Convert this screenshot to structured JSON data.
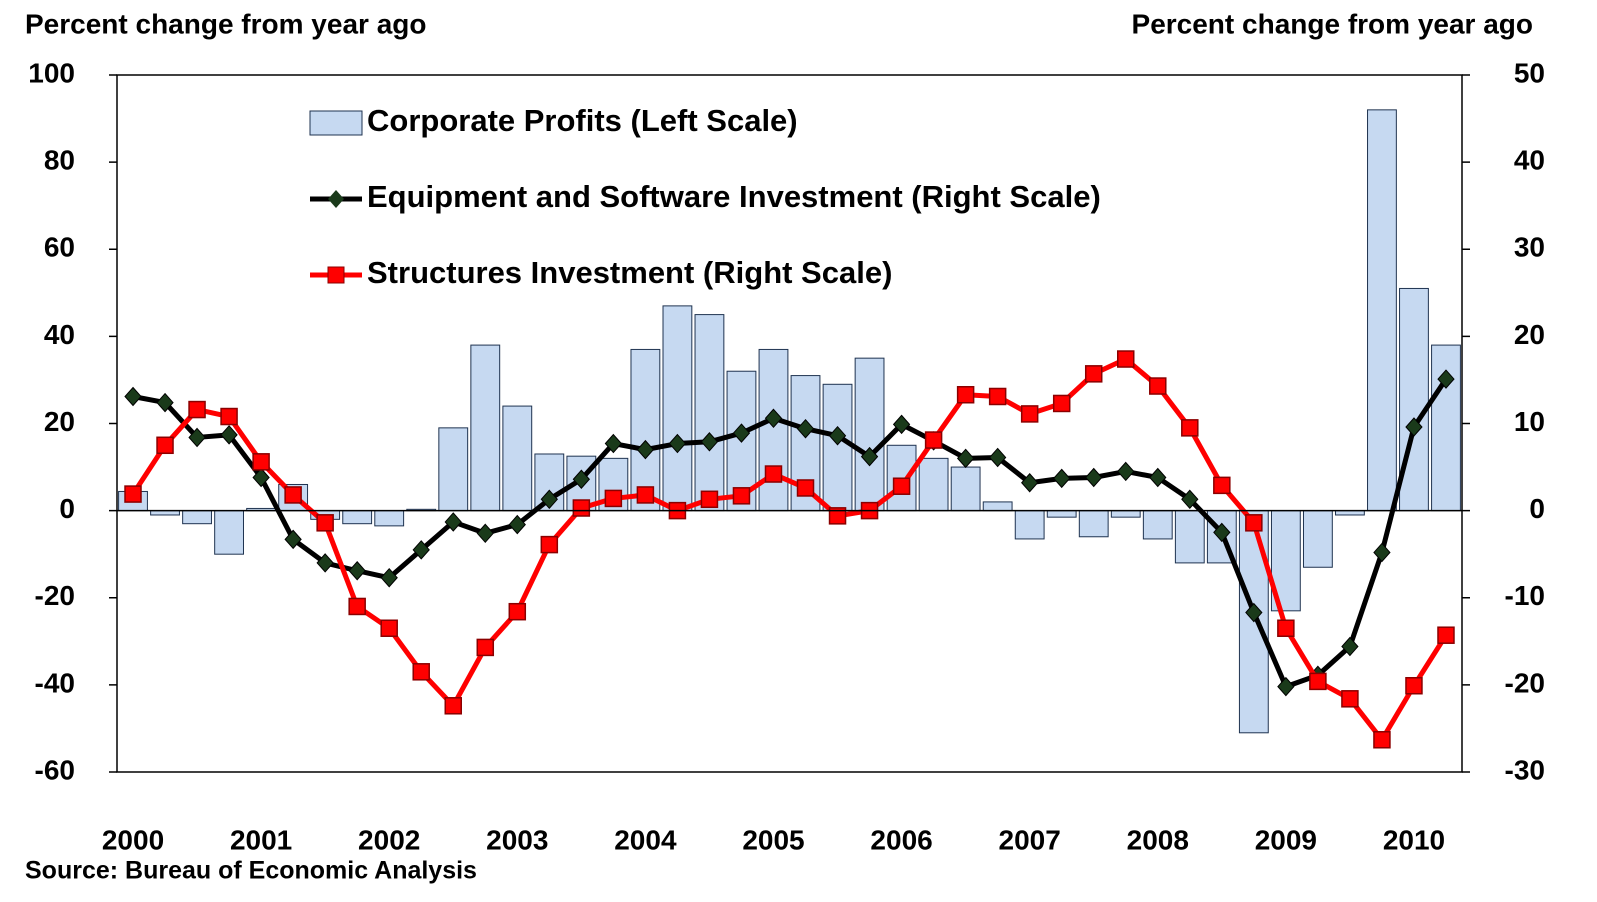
{
  "chart_data": {
    "type": "bar_line",
    "y_label": "Percent change from year ago",
    "y2_label": "Percent change from year ago",
    "source": "Source: Bureau of Economic Analysis",
    "categories": [
      "2000",
      null,
      null,
      null,
      "2001",
      null,
      null,
      null,
      "2002",
      null,
      null,
      null,
      "2003",
      null,
      null,
      null,
      "2004",
      null,
      null,
      null,
      "2005",
      null,
      null,
      null,
      "2006",
      null,
      null,
      null,
      "2007",
      null,
      null,
      null,
      "2008",
      null,
      null,
      null,
      "2009",
      null,
      null,
      null,
      "2010",
      null
    ],
    "ylim": [
      -60,
      100
    ],
    "yticks": [
      -60,
      -40,
      -20,
      0,
      20,
      40,
      60,
      80,
      100
    ],
    "y2lim": [
      -30,
      50
    ],
    "y2ticks": [
      -30,
      -20,
      -10,
      0,
      10,
      20,
      30,
      40,
      50
    ],
    "legend": "upper left",
    "series": [
      {
        "name": "Corporate Profits (Left Scale)",
        "type": "bar",
        "axis": "y",
        "color": "#c6d9f1",
        "values": [
          4.4,
          -1,
          -3,
          -10,
          0.5,
          6,
          -2,
          -3,
          -3.5,
          0.3,
          19,
          38,
          24,
          13,
          12.5,
          12,
          37,
          47,
          45,
          32,
          37,
          31,
          29,
          35,
          15,
          12,
          10,
          2,
          -6.5,
          -1.5,
          -6,
          -1.5,
          -6.5,
          -12,
          -12,
          -51,
          -23,
          -13,
          -1,
          92,
          51,
          38
        ]
      },
      {
        "name": "Equipment and Software Investment (Right Scale)",
        "type": "line",
        "axis": "y2",
        "color": "#000000",
        "marker": "diamond",
        "values": [
          13.1,
          12.4,
          8.4,
          8.7,
          3.8,
          -3.3,
          -6,
          -6.9,
          -7.7,
          -4.5,
          -1.3,
          -2.6,
          -1.6,
          1.3,
          3.6,
          7.7,
          7,
          7.7,
          7.9,
          8.9,
          10.6,
          9.4,
          8.6,
          6.2,
          9.9,
          8,
          6,
          6.1,
          3.2,
          3.7,
          3.8,
          4.5,
          3.8,
          1.3,
          -2.5,
          -11.7,
          -20.2,
          -18.9,
          -15.6,
          -4.8,
          9.6,
          15.1
        ]
      },
      {
        "name": "Structures Investment (Right Scale)",
        "type": "line",
        "axis": "y2",
        "color": "#ff0000",
        "marker": "square",
        "values": [
          1.9,
          7.5,
          11.6,
          10.8,
          5.6,
          1.8,
          -1.4,
          -11,
          -13.5,
          -18.5,
          -22.4,
          -15.7,
          -11.6,
          -3.9,
          0.3,
          1.4,
          1.8,
          0,
          1.3,
          1.7,
          4.2,
          2.6,
          -0.6,
          0,
          2.8,
          8.1,
          13.3,
          13.1,
          11.1,
          12.3,
          15.7,
          17.4,
          14.3,
          9.5,
          2.9,
          -1.4,
          -13.5,
          -19.6,
          -21.6,
          -26.3,
          -20.1,
          -14.3
        ]
      }
    ]
  }
}
